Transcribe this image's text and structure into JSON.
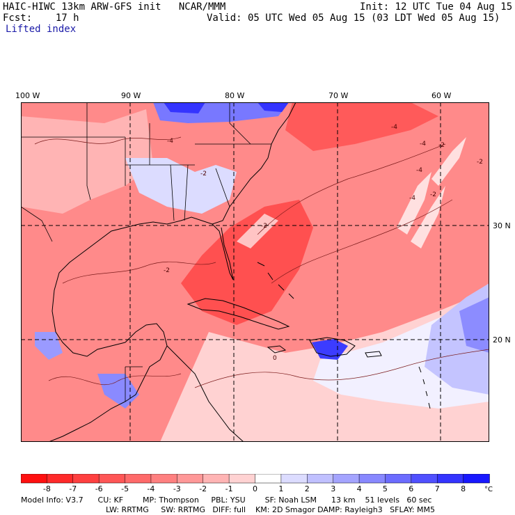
{
  "header": {
    "model_line": "HAIC-HIWC 13km ARW-GFS init   NCAR/MMM",
    "fcst_line": "Fcst:    17 h",
    "init_line": "Init: 12 UTC Tue 04 Aug 15",
    "valid_line": "Valid: 05 UTC Wed 05 Aug 15 (03 LDT Wed 05 Aug 15)",
    "field_name": "Lifted index"
  },
  "map": {
    "lon_labels": [
      "100 W",
      "90 W",
      "80 W",
      "70 W",
      "60 W"
    ],
    "lat_labels": [
      "30 N",
      "20 N"
    ],
    "contour_labels": [
      "-4",
      "-4",
      "-4",
      "-2",
      "-2",
      "-2",
      "-4",
      "-2",
      "-2",
      "0",
      "-4",
      "-2"
    ]
  },
  "colorbar": {
    "tick_labels": [
      "-8",
      "-7",
      "-6",
      "-5",
      "-4",
      "-3",
      "-2",
      "-1",
      "0",
      "1",
      "2",
      "3",
      "4",
      "5",
      "6",
      "7",
      "8"
    ],
    "unit": "°C",
    "colors": [
      "#ff1010",
      "#ff2a2a",
      "#ff4040",
      "#ff5656",
      "#ff6a6a",
      "#ff8080",
      "#ff9898",
      "#ffb4b4",
      "#ffd2d2",
      "#ffffff",
      "#dcdcff",
      "#c0c0ff",
      "#a4a4ff",
      "#8888ff",
      "#6c6cff",
      "#5050ff",
      "#3434ff",
      "#1818ff"
    ]
  },
  "model_info": {
    "line1": "Model Info: V3.7      CU: KF        MP: Thompson     PBL: YSU        SF: Noah LSM      13 km    51 levels   60 sec",
    "line2": "LW: RRTMG     SW: RRTMG   DIFF: full    KM: 2D Smagor DAMP: Rayleigh3   SFLAY: MM5"
  }
}
